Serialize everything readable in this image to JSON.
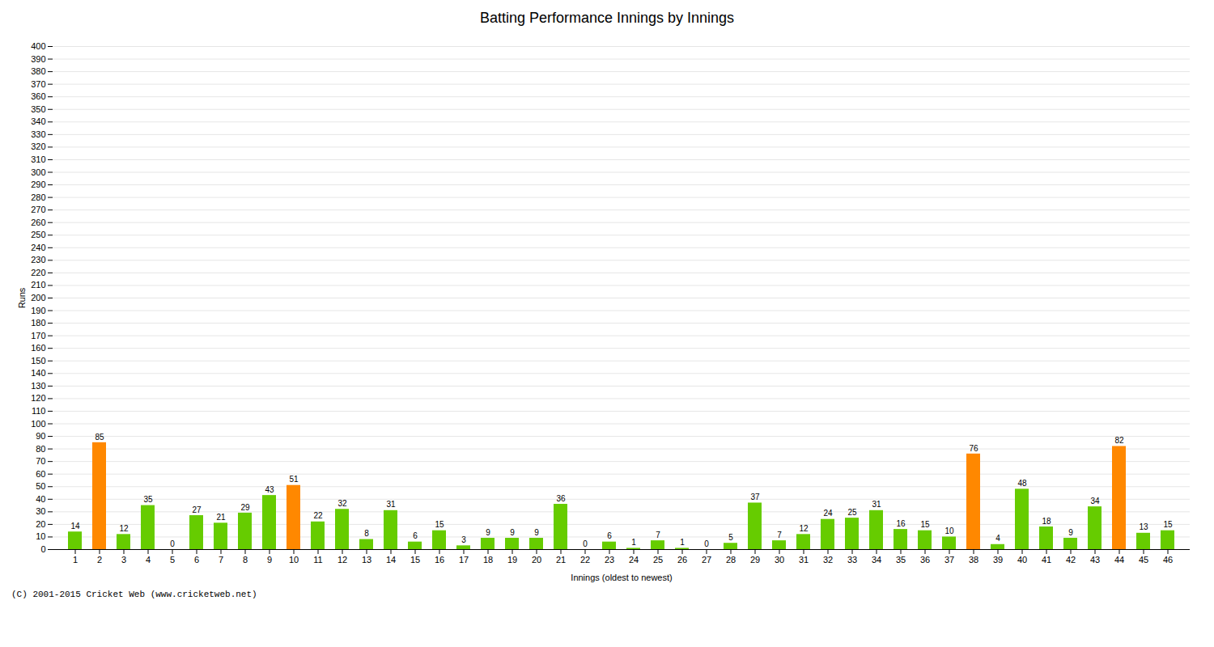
{
  "chart_data": {
    "type": "bar",
    "title": "Batting Performance Innings by Innings",
    "xlabel": "Innings (oldest to newest)",
    "ylabel": "Runs",
    "caption": "(C) 2001-2015 Cricket Web (www.cricketweb.net)",
    "categories": [
      "1",
      "2",
      "3",
      "4",
      "5",
      "6",
      "7",
      "8",
      "9",
      "10",
      "11",
      "12",
      "13",
      "14",
      "15",
      "16",
      "17",
      "18",
      "19",
      "20",
      "21",
      "22",
      "23",
      "24",
      "25",
      "26",
      "27",
      "28",
      "29",
      "30",
      "31",
      "32",
      "33",
      "34",
      "35",
      "36",
      "37",
      "38",
      "39",
      "40",
      "41",
      "42",
      "43",
      "44",
      "45",
      "46"
    ],
    "values": [
      14,
      85,
      12,
      35,
      0,
      27,
      21,
      29,
      43,
      51,
      22,
      32,
      8,
      31,
      6,
      15,
      3,
      9,
      9,
      9,
      36,
      0,
      6,
      1,
      7,
      1,
      0,
      5,
      37,
      7,
      12,
      24,
      25,
      31,
      16,
      15,
      10,
      76,
      4,
      48,
      18,
      9,
      34,
      82,
      13,
      15
    ],
    "colors": [
      "#66cc00",
      "#ff8800",
      "#66cc00",
      "#66cc00",
      "#66cc00",
      "#66cc00",
      "#66cc00",
      "#66cc00",
      "#66cc00",
      "#ff8800",
      "#66cc00",
      "#66cc00",
      "#66cc00",
      "#66cc00",
      "#66cc00",
      "#66cc00",
      "#66cc00",
      "#66cc00",
      "#66cc00",
      "#66cc00",
      "#66cc00",
      "#66cc00",
      "#66cc00",
      "#66cc00",
      "#66cc00",
      "#66cc00",
      "#66cc00",
      "#66cc00",
      "#66cc00",
      "#66cc00",
      "#66cc00",
      "#66cc00",
      "#66cc00",
      "#66cc00",
      "#66cc00",
      "#66cc00",
      "#66cc00",
      "#ff8800",
      "#66cc00",
      "#66cc00",
      "#66cc00",
      "#66cc00",
      "#66cc00",
      "#ff8800",
      "#66cc00",
      "#66cc00"
    ],
    "ylim": [
      0,
      400
    ],
    "yticks": [
      0,
      10,
      20,
      30,
      40,
      50,
      60,
      70,
      80,
      90,
      100,
      110,
      120,
      130,
      140,
      150,
      160,
      170,
      180,
      190,
      200,
      210,
      220,
      230,
      240,
      250,
      260,
      270,
      280,
      290,
      300,
      310,
      320,
      330,
      340,
      350,
      360,
      370,
      380,
      390,
      400
    ],
    "grid": true,
    "data_labels": true
  }
}
